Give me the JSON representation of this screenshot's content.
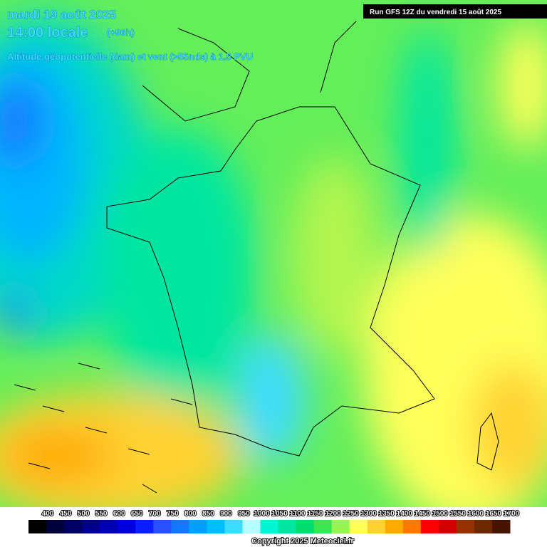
{
  "header": {
    "date": "mardi 19 août 2025",
    "time": "14:00 locale",
    "lead": "(+96h)",
    "field": "Altitude géopotentielle (dam) et vent (>55nds) à 1.5 PVU",
    "run": "Run GFS 12Z du vendredi 15 août 2025"
  },
  "legend": {
    "items": [
      {
        "value": 400,
        "color": "#000000"
      },
      {
        "value": 450,
        "color": "#00003c"
      },
      {
        "value": 500,
        "color": "#000064"
      },
      {
        "value": 550,
        "color": "#00008c"
      },
      {
        "value": 600,
        "color": "#0000b4"
      },
      {
        "value": 650,
        "color": "#0000dc"
      },
      {
        "value": 700,
        "color": "#0a1eff"
      },
      {
        "value": 750,
        "color": "#2850ff"
      },
      {
        "value": 800,
        "color": "#1478ff"
      },
      {
        "value": 850,
        "color": "#00a0ff"
      },
      {
        "value": 900,
        "color": "#00beff"
      },
      {
        "value": 950,
        "color": "#3cdcff"
      },
      {
        "value": 1000,
        "color": "#b4ffff"
      },
      {
        "value": 1050,
        "color": "#00f5d2"
      },
      {
        "value": 1100,
        "color": "#00e6a0"
      },
      {
        "value": 1150,
        "color": "#00dc6e"
      },
      {
        "value": 1200,
        "color": "#3ce650"
      },
      {
        "value": 1250,
        "color": "#96f550"
      },
      {
        "value": 1300,
        "color": "#ffff5a"
      },
      {
        "value": 1350,
        "color": "#ffd232"
      },
      {
        "value": 1400,
        "color": "#ffaa00"
      },
      {
        "value": 1450,
        "color": "#ff7800"
      },
      {
        "value": 1500,
        "color": "#ff0000"
      },
      {
        "value": 1550,
        "color": "#d20000"
      },
      {
        "value": 1600,
        "color": "#963200"
      },
      {
        "value": 1650,
        "color": "#6e2800"
      },
      {
        "value": 1700,
        "color": "#461400"
      }
    ]
  },
  "footer": {
    "copyright": "Copyright 2025 Meteociel.fr"
  }
}
